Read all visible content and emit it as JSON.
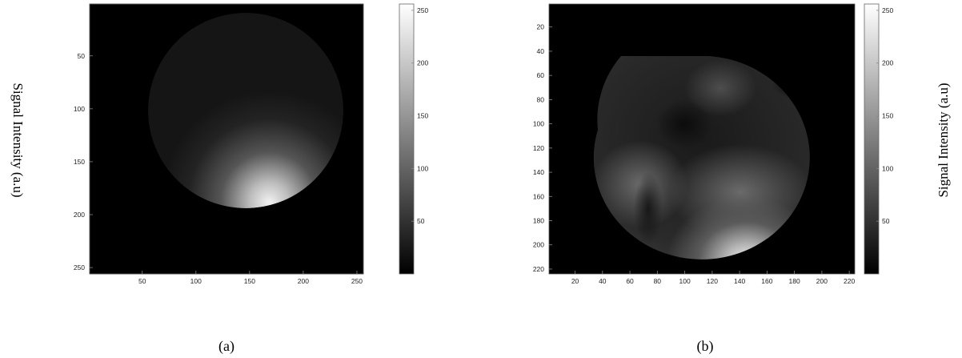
{
  "chart_data": [
    {
      "type": "heatmap",
      "panel_label": "(a)",
      "colorbar_label": "Signal Intensity  (a.u)",
      "colormap": "gray",
      "x_ticks": [
        50,
        100,
        150,
        200,
        250
      ],
      "y_ticks": [
        50,
        100,
        150,
        200,
        250
      ],
      "xlim": [
        1,
        256
      ],
      "ylim": [
        256,
        1
      ],
      "colorbar_ticks": [
        50,
        100,
        150,
        200,
        250
      ],
      "colorbar_range": [
        0,
        256
      ],
      "circle": {
        "cx": 140,
        "cy": 118,
        "r": 83
      },
      "hotspot": {
        "x": 160,
        "y": 195,
        "peak": 240
      },
      "background": 0
    },
    {
      "type": "heatmap",
      "panel_label": "(b)",
      "colorbar_label": "Signal Intensity  (a.u)",
      "colormap": "gray",
      "x_ticks": [
        20,
        40,
        60,
        80,
        100,
        120,
        140,
        160,
        180,
        200,
        220
      ],
      "y_ticks": [
        20,
        40,
        60,
        80,
        100,
        120,
        140,
        160,
        180,
        200,
        220
      ],
      "xlim": [
        1,
        224
      ],
      "ylim": [
        224,
        1
      ],
      "colorbar_ticks": [
        50,
        100,
        150,
        200,
        250
      ],
      "colorbar_range": [
        0,
        256
      ],
      "circle": {
        "cx": 115,
        "cy": 118,
        "r": 87
      },
      "hotspot": {
        "x": 135,
        "y": 182,
        "peak": 220
      },
      "background": 0
    }
  ]
}
